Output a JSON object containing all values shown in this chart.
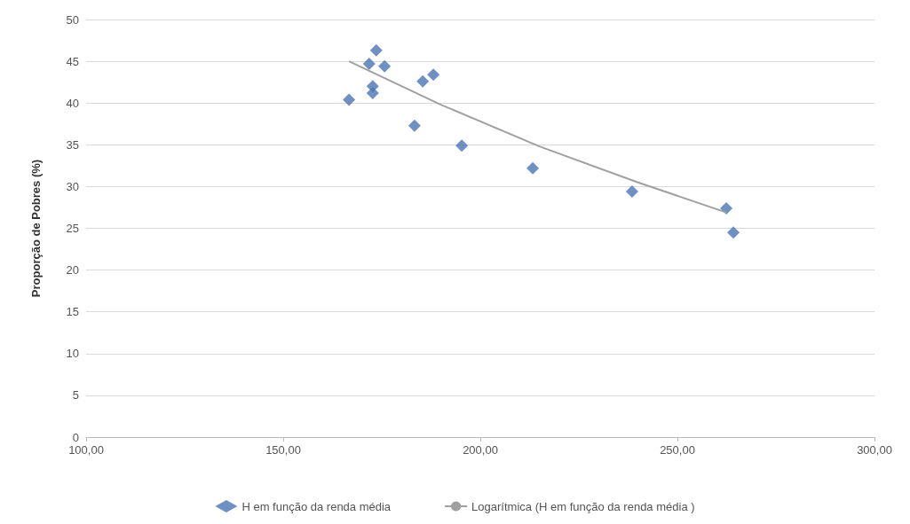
{
  "chart_data": {
    "type": "scatter",
    "ylabel": "Proporção de Pobres (%)",
    "xlim": [
      100,
      300
    ],
    "xticks": [
      {
        "value": 100,
        "label": "100,00"
      },
      {
        "value": 150,
        "label": "150,00"
      },
      {
        "value": 200,
        "label": "200,00"
      },
      {
        "value": 250,
        "label": "250,00"
      },
      {
        "value": 300,
        "label": "300,00"
      }
    ],
    "ylim": [
      0,
      50
    ],
    "yticks": [
      0,
      5,
      10,
      15,
      20,
      25,
      30,
      35,
      40,
      45,
      50
    ],
    "grid": "y",
    "legend": "bottom",
    "marker": "diamond",
    "series": [
      {
        "name": "H em função da renda média",
        "color": "#4a74b4",
        "x": [
          166.7,
          173.6,
          171.8,
          175.7,
          172.7,
          172.7,
          185.4,
          188.1,
          183.3,
          195.3,
          213.3,
          238.5,
          262.4,
          264.2
        ],
        "values": [
          40.4,
          46.3,
          44.7,
          44.4,
          42.0,
          41.2,
          42.6,
          43.4,
          37.3,
          34.9,
          32.2,
          29.4,
          27.4,
          24.5
        ]
      },
      {
        "name": "Logarítmica (H em função da renda média )",
        "type": "line",
        "color": "#a0a0a0",
        "marker": "none",
        "x": [
          166.7,
          190,
          215,
          240,
          262.4
        ],
        "values": [
          45,
          39.8,
          34.8,
          30.5,
          26.9
        ]
      }
    ]
  }
}
